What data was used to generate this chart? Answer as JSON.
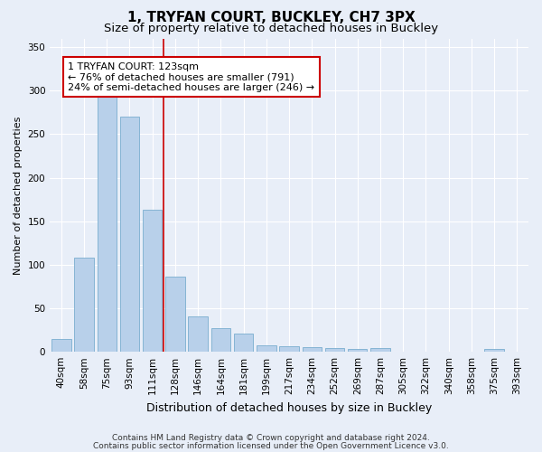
{
  "title_line1": "1, TRYFAN COURT, BUCKLEY, CH7 3PX",
  "title_line2": "Size of property relative to detached houses in Buckley",
  "xlabel": "Distribution of detached houses by size in Buckley",
  "ylabel": "Number of detached properties",
  "categories": [
    "40sqm",
    "58sqm",
    "75sqm",
    "93sqm",
    "111sqm",
    "128sqm",
    "146sqm",
    "164sqm",
    "181sqm",
    "199sqm",
    "217sqm",
    "234sqm",
    "252sqm",
    "269sqm",
    "287sqm",
    "305sqm",
    "322sqm",
    "340sqm",
    "358sqm",
    "375sqm",
    "393sqm"
  ],
  "values": [
    15,
    108,
    293,
    270,
    163,
    86,
    41,
    27,
    21,
    7,
    6,
    5,
    4,
    3,
    4,
    0,
    0,
    0,
    0,
    3,
    0
  ],
  "bar_color": "#b8d0ea",
  "bar_edgecolor": "#7aadcf",
  "vline_x": 4.5,
  "vline_color": "#cc0000",
  "annotation_text": "1 TRYFAN COURT: 123sqm\n← 76% of detached houses are smaller (791)\n24% of semi-detached houses are larger (246) →",
  "annotation_box_color": "#ffffff",
  "annotation_box_edgecolor": "#cc0000",
  "ylim": [
    0,
    360
  ],
  "yticks": [
    0,
    50,
    100,
    150,
    200,
    250,
    300,
    350
  ],
  "footer_line1": "Contains HM Land Registry data © Crown copyright and database right 2024.",
  "footer_line2": "Contains public sector information licensed under the Open Government Licence v3.0.",
  "background_color": "#e8eef8",
  "grid_color": "#ffffff",
  "title_fontsize": 11,
  "subtitle_fontsize": 9.5,
  "ylabel_fontsize": 8,
  "xlabel_fontsize": 9,
  "tick_fontsize": 7.5,
  "annot_fontsize": 8,
  "footer_fontsize": 6.5
}
